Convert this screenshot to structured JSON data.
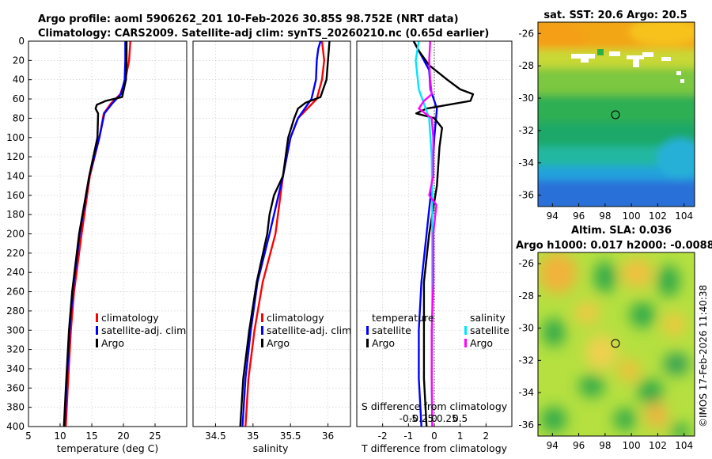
{
  "title": {
    "line1": "Argo profile: aoml 5906262_201 10-Feb-2026 30.85S 98.752E (NRT data)",
    "line2": "Climatology: CARS2009. Satellite-adj clim: synTS_20260210.nc (0.65d earlier)"
  },
  "depth_axis": {
    "range": [
      0,
      400
    ],
    "ticks": [
      0,
      20,
      40,
      60,
      80,
      100,
      120,
      140,
      160,
      180,
      200,
      220,
      240,
      260,
      280,
      300,
      320,
      340,
      360,
      380,
      400
    ]
  },
  "chart_data": [
    {
      "type": "line",
      "name": "temperature",
      "xlabel": "temperature (deg C)",
      "xlim": [
        5,
        30
      ],
      "xticks": [
        5,
        10,
        15,
        20,
        25
      ],
      "legend": [
        "climatology",
        "satellite-adj. clim",
        "Argo"
      ],
      "series": [
        {
          "name": "climatology",
          "color": "#ff0000",
          "depth": [
            0,
            20,
            40,
            55,
            65,
            75,
            100,
            140,
            200,
            260,
            300,
            360,
            400
          ],
          "values": [
            21.1,
            20.9,
            20.3,
            19.5,
            18.0,
            16.9,
            16.2,
            14.7,
            13.4,
            12.2,
            11.7,
            11.2,
            10.9
          ]
        },
        {
          "name": "satellite-adj. clim",
          "color": "#0000ff",
          "depth": [
            0,
            20,
            40,
            55,
            65,
            75,
            100,
            140,
            200,
            260,
            300,
            360,
            400
          ],
          "values": [
            20.3,
            20.3,
            20.2,
            19.6,
            18.2,
            17.0,
            16.2,
            14.6,
            13.1,
            12.0,
            11.5,
            11.0,
            10.7
          ]
        },
        {
          "name": "Argo",
          "color": "#000000",
          "depth": [
            0,
            20,
            40,
            58,
            62,
            66,
            70,
            75,
            100,
            140,
            200,
            260,
            300,
            360,
            400
          ],
          "values": [
            20.5,
            20.5,
            20.4,
            19.8,
            17.2,
            15.8,
            15.6,
            16.0,
            15.9,
            14.6,
            13.0,
            11.9,
            11.4,
            10.9,
            10.6
          ]
        }
      ]
    },
    {
      "type": "line",
      "name": "salinity",
      "xlabel": "salinity",
      "xlim": [
        34.2,
        36.3
      ],
      "xticks": [
        34.5,
        35,
        35.5,
        36
      ],
      "legend": [
        "climatology",
        "satellite-adj. clim",
        "Argo"
      ],
      "series": [
        {
          "name": "climatology",
          "color": "#ff0000",
          "depth": [
            0,
            20,
            40,
            60,
            80,
            100,
            140,
            200,
            250,
            300,
            350,
            400
          ],
          "values": [
            35.92,
            35.95,
            35.92,
            35.85,
            35.6,
            35.5,
            35.4,
            35.3,
            35.13,
            35.02,
            34.94,
            34.9
          ]
        },
        {
          "name": "satellite-adj. clim",
          "color": "#0000ff",
          "depth": [
            0,
            8,
            20,
            40,
            60,
            80,
            100,
            140,
            200,
            250,
            300,
            350,
            400
          ],
          "values": [
            35.9,
            35.87,
            35.85,
            35.84,
            35.78,
            35.6,
            35.5,
            35.4,
            35.22,
            35.06,
            34.97,
            34.9,
            34.86
          ]
        },
        {
          "name": "Argo",
          "color": "#000000",
          "depth": [
            0,
            20,
            40,
            58,
            64,
            70,
            80,
            100,
            140,
            160,
            180,
            200,
            250,
            300,
            350,
            400
          ],
          "values": [
            36.02,
            36.0,
            35.98,
            35.9,
            35.7,
            35.6,
            35.55,
            35.47,
            35.4,
            35.28,
            35.22,
            35.19,
            35.05,
            34.95,
            34.87,
            34.83
          ]
        }
      ]
    },
    {
      "type": "line",
      "name": "difference",
      "xlabel": "T difference from climatology",
      "xlabel_top": "S difference from climatology",
      "xlim": [
        -3,
        3
      ],
      "xticks": [
        -2,
        -1,
        0,
        1,
        2
      ],
      "xlim_top": [
        -1.5,
        1.5
      ],
      "xticks_top": [
        -0.5,
        -0.25,
        0,
        0.25,
        0.5
      ],
      "legend_temperature_title": "temperature",
      "legend_salinity_title": "salinity",
      "legend_temperature": [
        "satellite",
        "Argo"
      ],
      "legend_salinity": [
        "satellite",
        "Argo"
      ],
      "series": [
        {
          "name": "temperature satellite",
          "color": "#0000ff",
          "depth": [
            0,
            10,
            30,
            50,
            70,
            100,
            150,
            200,
            250,
            300,
            350,
            400
          ],
          "values": [
            -0.8,
            -0.6,
            -0.2,
            -0.15,
            0.1,
            0.0,
            -0.1,
            -0.3,
            -0.5,
            -0.6,
            -0.6,
            -0.5
          ]
        },
        {
          "name": "temperature Argo",
          "color": "#000000",
          "depth": [
            0,
            10,
            25,
            40,
            50,
            55,
            62,
            70,
            75,
            80,
            90,
            110,
            150,
            200,
            250,
            300,
            350,
            400
          ],
          "values": [
            -0.8,
            -0.6,
            -0.2,
            0.5,
            1.0,
            1.5,
            1.4,
            -0.3,
            -0.7,
            0.0,
            0.3,
            0.2,
            0.1,
            -0.2,
            -0.4,
            -0.4,
            -0.4,
            -0.3
          ]
        },
        {
          "name": "salinity satellite",
          "color": "#00e5ff",
          "depth": [
            0,
            20,
            50,
            80,
            120,
            160,
            200,
            250,
            300,
            350,
            400
          ],
          "values": [
            -0.3,
            -0.36,
            -0.3,
            -0.1,
            -0.05,
            -0.04,
            -0.04,
            -0.04,
            -0.04,
            -0.05,
            -0.04
          ]
        },
        {
          "name": "salinity Argo",
          "color": "#ff00ff",
          "depth": [
            0,
            20,
            40,
            55,
            62,
            70,
            80,
            100,
            140,
            160,
            170,
            200,
            250,
            300,
            350,
            400
          ],
          "values": [
            -0.08,
            -0.1,
            -0.08,
            -0.05,
            -0.2,
            -0.3,
            -0.05,
            -0.02,
            -0.02,
            -0.1,
            0.04,
            -0.02,
            -0.02,
            -0.05,
            -0.05,
            -0.04
          ]
        }
      ]
    }
  ],
  "maps": {
    "sst": {
      "title": "sat. SST: 20.6 Argo: 20.5",
      "xticks": [
        "94",
        "96",
        "98",
        "100",
        "102",
        "104"
      ],
      "yticks": [
        "-26",
        "-28",
        "-30",
        "-32",
        "-34",
        "-36"
      ]
    },
    "sla": {
      "title_line1": "Altim. SLA: 0.036",
      "title_line2": "Argo h1000: 0.017 h2000: -0.0088",
      "xticks": [
        "94",
        "96",
        "98",
        "100",
        "102",
        "104"
      ],
      "yticks": [
        "-26",
        "-28",
        "-30",
        "-32",
        "-34",
        "-36"
      ]
    }
  },
  "footer": "©IMOS 17-Feb-2026 11:40:38"
}
